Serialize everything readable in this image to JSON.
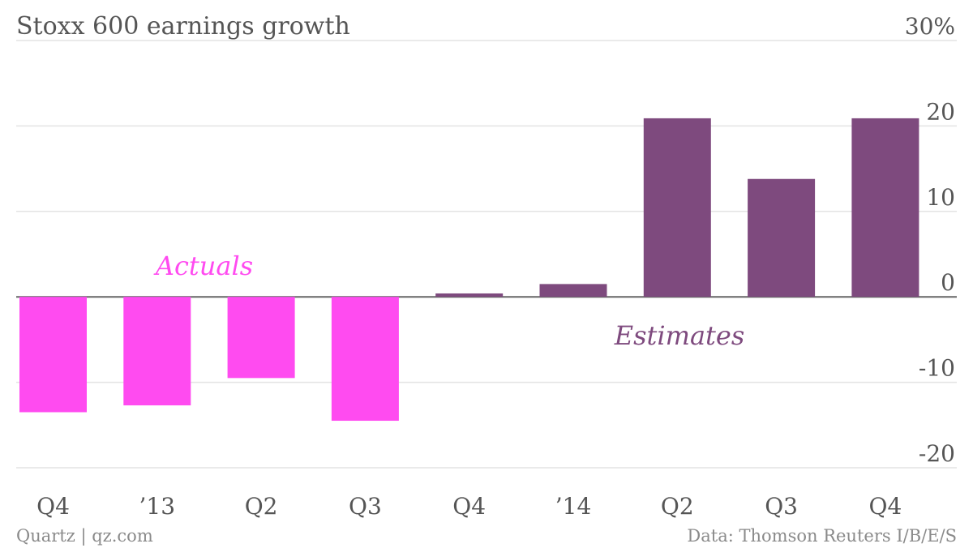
{
  "chart_data": {
    "type": "bar",
    "title": "Stoxx 600 earnings growth",
    "categories": [
      "Q4",
      "’13",
      "Q2",
      "Q3",
      "Q4",
      "’14",
      "Q2",
      "Q3",
      "Q4"
    ],
    "values": [
      -13.5,
      -12.7,
      -9.5,
      -14.5,
      0.4,
      1.5,
      20.9,
      13.8,
      20.9
    ],
    "groups": [
      {
        "label": "Actuals",
        "color": "#ff4bf0",
        "indices": [
          0,
          1,
          2,
          3
        ]
      },
      {
        "label": "Estimates",
        "color": "#7e4a7e",
        "indices": [
          4,
          5,
          6,
          7,
          8
        ]
      }
    ],
    "ylim": [
      -20,
      30
    ],
    "yticks": [
      {
        "value": 30,
        "label": "30%"
      },
      {
        "value": 20,
        "label": "20"
      },
      {
        "value": 10,
        "label": "10"
      },
      {
        "value": 0,
        "label": "0"
      },
      {
        "value": -10,
        "label": "-10"
      },
      {
        "value": -20,
        "label": "-20"
      }
    ],
    "y_axis_position": "right",
    "grid": true,
    "xlabel": "",
    "ylabel": ""
  },
  "footer": {
    "source_left": "Quartz | qz.com",
    "source_right": "Data: Thomson Reuters I/B/E/S"
  }
}
